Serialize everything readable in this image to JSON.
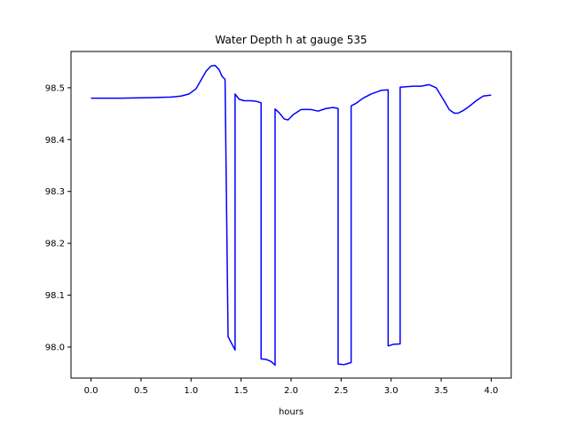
{
  "chart_data": {
    "type": "line",
    "title": "Water Depth h at gauge 535",
    "xlabel": "hours",
    "ylabel": "",
    "xlim": [
      -0.2,
      4.2
    ],
    "ylim": [
      97.94,
      98.57
    ],
    "xticks": [
      0.0,
      0.5,
      1.0,
      1.5,
      2.0,
      2.5,
      3.0,
      3.5,
      4.0
    ],
    "xtick_labels": [
      "0.0",
      "0.5",
      "1.0",
      "1.5",
      "2.0",
      "2.5",
      "3.0",
      "3.5",
      "4.0"
    ],
    "yticks": [
      98.0,
      98.1,
      98.2,
      98.3,
      98.4,
      98.5
    ],
    "ytick_labels": [
      "98.0",
      "98.1",
      "98.2",
      "98.3",
      "98.4",
      "98.5"
    ],
    "grid": false,
    "series": [
      {
        "color": "#0000ff",
        "x": [
          0.0,
          0.3,
          0.6,
          0.8,
          0.9,
          0.98,
          1.05,
          1.1,
          1.15,
          1.2,
          1.24,
          1.28,
          1.31,
          1.34,
          1.37,
          1.37,
          1.44,
          1.44,
          1.48,
          1.53,
          1.6,
          1.65,
          1.7,
          1.7,
          1.75,
          1.8,
          1.84,
          1.84,
          1.88,
          1.93,
          1.97,
          2.02,
          2.1,
          2.2,
          2.27,
          2.35,
          2.42,
          2.47,
          2.47,
          2.53,
          2.6,
          2.6,
          2.65,
          2.72,
          2.8,
          2.9,
          2.97,
          2.97,
          3.02,
          3.09,
          3.09,
          3.15,
          3.22,
          3.3,
          3.38,
          3.45,
          3.52,
          3.58,
          3.63,
          3.67,
          3.72,
          3.78,
          3.85,
          3.92,
          4.0
        ],
        "y": [
          98.48,
          98.48,
          98.481,
          98.482,
          98.484,
          98.488,
          98.498,
          98.515,
          98.532,
          98.542,
          98.543,
          98.535,
          98.522,
          98.516,
          98.02,
          98.02,
          97.994,
          98.488,
          98.478,
          98.475,
          98.475,
          98.474,
          98.471,
          97.977,
          97.976,
          97.972,
          97.965,
          98.459,
          98.452,
          98.44,
          98.438,
          98.448,
          98.458,
          98.458,
          98.455,
          98.46,
          98.462,
          98.46,
          97.967,
          97.966,
          97.97,
          98.465,
          98.47,
          98.48,
          98.488,
          98.495,
          98.496,
          98.002,
          98.005,
          98.006,
          98.501,
          98.502,
          98.503,
          98.503,
          98.506,
          98.5,
          98.478,
          98.458,
          98.451,
          98.451,
          98.456,
          98.464,
          98.475,
          98.484,
          98.486
        ]
      }
    ]
  }
}
